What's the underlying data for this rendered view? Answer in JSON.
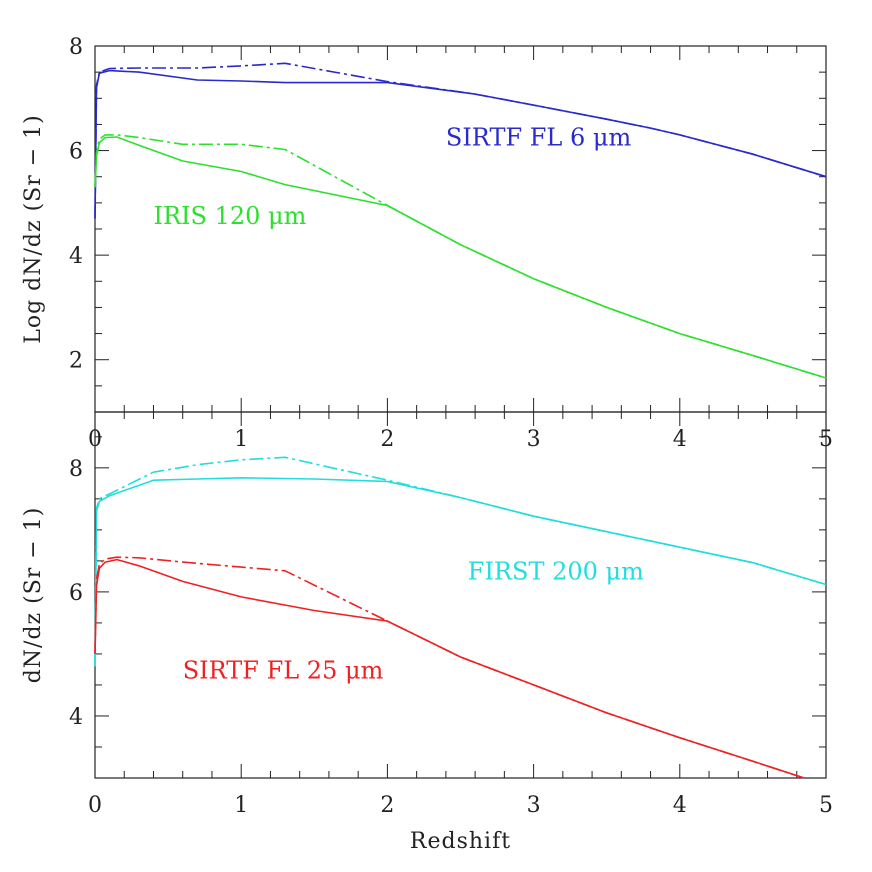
{
  "chart_data": [
    {
      "type": "line",
      "panel": "top",
      "xlabel": "",
      "ylabel": "Log dN/dz (Sr − 1)",
      "xlim": [
        0,
        5
      ],
      "ylim": [
        1,
        8
      ],
      "xticks": [
        0,
        1,
        2,
        3,
        4,
        5
      ],
      "yticks": [
        2,
        4,
        6,
        8
      ],
      "grid": false,
      "annotations": [
        {
          "text": "SIRTF FL 6 μm",
          "color": "#2a2acc",
          "x": 2.4,
          "y": 6.1
        },
        {
          "text": "IRIS 120 μm",
          "color": "#2ee02e",
          "x": 0.4,
          "y": 4.6
        }
      ],
      "series": [
        {
          "color": "#2a2acc",
          "style": "solid",
          "x": [
            0,
            0.01,
            0.03,
            0.1,
            0.3,
            0.7,
            1.0,
            1.3,
            2.0,
            2.6,
            3.0,
            3.5,
            3.8,
            4.0,
            4.5,
            5.0
          ],
          "y": [
            4.7,
            7.2,
            7.48,
            7.53,
            7.5,
            7.35,
            7.33,
            7.3,
            7.3,
            7.08,
            6.87,
            6.6,
            6.43,
            6.3,
            5.93,
            5.5
          ]
        },
        {
          "color": "#2a2acc",
          "style": "dashdot",
          "x": [
            0,
            0.01,
            0.03,
            0.1,
            0.3,
            0.7,
            1.0,
            1.3,
            2.0,
            2.6,
            3.0,
            3.5,
            3.8,
            4.0,
            4.5,
            5.0
          ],
          "y": [
            4.7,
            7.25,
            7.5,
            7.57,
            7.58,
            7.58,
            7.62,
            7.67,
            7.32,
            7.08,
            6.87,
            6.6,
            6.43,
            6.3,
            5.93,
            5.5
          ]
        },
        {
          "color": "#2ee02e",
          "style": "solid",
          "x": [
            0,
            0.01,
            0.03,
            0.07,
            0.15,
            0.3,
            0.6,
            1.0,
            1.3,
            2.0,
            2.5,
            3.0,
            3.5,
            4.0,
            4.5,
            5.0
          ],
          "y": [
            5.3,
            5.9,
            6.15,
            6.25,
            6.26,
            6.1,
            5.8,
            5.6,
            5.35,
            4.95,
            4.2,
            3.55,
            3.0,
            2.5,
            2.08,
            1.65
          ]
        },
        {
          "color": "#2ee02e",
          "style": "dashdot",
          "x": [
            0,
            0.01,
            0.03,
            0.07,
            0.15,
            0.3,
            0.6,
            1.0,
            1.3,
            2.0,
            2.5,
            3.0,
            3.5,
            4.0,
            4.5,
            5.0
          ],
          "y": [
            5.3,
            5.95,
            6.22,
            6.3,
            6.3,
            6.25,
            6.12,
            6.12,
            6.02,
            4.95,
            4.2,
            3.55,
            3.0,
            2.5,
            2.08,
            1.65
          ]
        }
      ]
    },
    {
      "type": "line",
      "panel": "bottom",
      "xlabel": "Redshift",
      "ylabel": "dN/dz (Sr − 1)",
      "xlim": [
        0,
        5
      ],
      "ylim": [
        3,
        8.9
      ],
      "xticks": [
        0,
        1,
        2,
        3,
        4,
        5
      ],
      "yticks": [
        4,
        6,
        8
      ],
      "grid": false,
      "annotations": [
        {
          "text": "FIRST 200 μm",
          "color": "#22dddd",
          "x": 2.55,
          "y": 6.2
        },
        {
          "text": "SIRTF FL 25 μm",
          "color": "#ee2222",
          "x": 0.6,
          "y": 4.6
        }
      ],
      "series": [
        {
          "color": "#22dddd",
          "style": "solid",
          "x": [
            0,
            0.01,
            0.03,
            0.1,
            0.4,
            0.7,
            1.0,
            1.5,
            2.0,
            2.5,
            3.0,
            3.5,
            4.0,
            4.5,
            5.0
          ],
          "y": [
            4.8,
            7.3,
            7.46,
            7.55,
            7.8,
            7.82,
            7.84,
            7.82,
            7.78,
            7.52,
            7.22,
            6.97,
            6.72,
            6.47,
            6.12
          ]
        },
        {
          "color": "#22dddd",
          "style": "dashdot",
          "x": [
            0,
            0.01,
            0.03,
            0.1,
            0.4,
            0.7,
            1.0,
            1.3,
            2.0,
            2.5,
            3.0,
            3.5,
            4.0,
            4.5,
            5.0
          ],
          "y": [
            4.8,
            7.35,
            7.5,
            7.58,
            7.93,
            8.05,
            8.13,
            8.17,
            7.8,
            7.52,
            7.22,
            6.97,
            6.72,
            6.47,
            6.12
          ]
        },
        {
          "color": "#ee2222",
          "style": "solid",
          "x": [
            0,
            0.01,
            0.03,
            0.07,
            0.15,
            0.3,
            0.6,
            1.0,
            1.5,
            2.0,
            2.5,
            3.0,
            3.5,
            4.0,
            4.5,
            4.85
          ],
          "y": [
            5.0,
            6.1,
            6.38,
            6.48,
            6.52,
            6.42,
            6.17,
            5.92,
            5.7,
            5.53,
            4.95,
            4.5,
            4.05,
            3.65,
            3.27,
            3.0
          ]
        },
        {
          "color": "#ee2222",
          "style": "dashdot",
          "x": [
            0,
            0.01,
            0.03,
            0.07,
            0.15,
            0.3,
            0.6,
            1.0,
            1.3,
            2.0,
            2.5,
            3.0,
            3.5,
            4.0,
            4.5,
            4.85
          ],
          "y": [
            5.0,
            6.2,
            6.45,
            6.53,
            6.56,
            6.55,
            6.48,
            6.4,
            6.34,
            5.53,
            4.95,
            4.5,
            4.05,
            3.65,
            3.27,
            3.0
          ]
        }
      ]
    }
  ]
}
